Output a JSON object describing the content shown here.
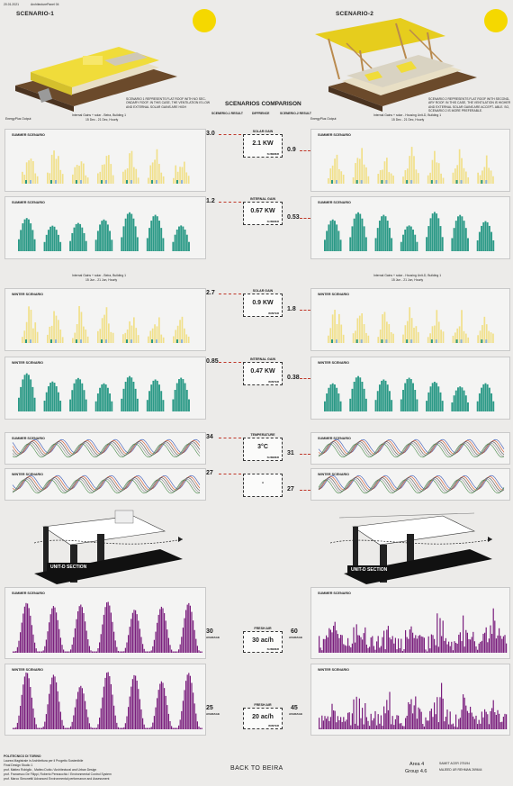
{
  "header": {
    "date": "20.01.2021",
    "studio": "ArchitecturePanel 04"
  },
  "scenario1": {
    "title": "SCENARIO-1",
    "description": "SCENARIO 1 REPRESENTS FLAT ROOF WITH NO SEC- ONDARY ROOF. IN THIS CASE, THE VENTILATION IS LOW AND EXTERNAL SOLAR GAINS ARE HIGH"
  },
  "scenario2": {
    "title": "SCENARIO-2",
    "description": "SCENARIO 2 REPRESENTS FLAT ROOF WITH SECOND- ARY ROOF. IN THIS CASE, THE VENTILATION IS HIGHER AND EXTERNAL SOLAR GAINS ARE ACCEPT- ABLE. SO, SCENARIO 2 IS MORE PREFERABLE."
  },
  "comparison": {
    "title": "SCENARIOS COMPARISON",
    "col1": "SCENERIO-1 RESULT",
    "col2": "DIFFRENCE",
    "col3": "SCENERIO-2 RESULT"
  },
  "chart_captions": {
    "summer_left": "Internal Gains + solar - Beira, Building 1",
    "summer_right": "Internal Gains + solar - Housing Unit-D, Building 1",
    "winter_left": "Internal Gains + solar - Beira, Building 1",
    "winter_right": "Internal Gains + solar - Housing Unit-D, Building 1",
    "energy_label": "EnergyPlus Output",
    "summer_dates": "15 Dec - 21 Dec, Hourly",
    "winter_dates": "15 Jun - 21 Jun, Hourly"
  },
  "rows": [
    {
      "id": "solar-summer",
      "left_label": "SUMMER SCENARIO",
      "right_label": "SUMMER SCENARIO",
      "left_value": "3.0",
      "right_value": "0.9",
      "category": "SOLAR GAIN",
      "diff": "2.1 KW",
      "season": "SUMMER",
      "type": "solar"
    },
    {
      "id": "internal-summer",
      "left_label": "SUMMER SCENARIO",
      "right_label": "SUMMER SCENARIO",
      "left_value": "1.2",
      "right_value": "0.53",
      "category": "INTERNAL GAIN",
      "diff": "0.67 KW",
      "season": "SUMMER",
      "type": "internal"
    },
    {
      "id": "solar-winter",
      "left_label": "WINTER SCENARIO",
      "right_label": "WINTER SCENARIO",
      "left_value": "2.7",
      "right_value": "1.8",
      "category": "SOLAR GAIN",
      "diff": "0.9 KW",
      "season": "WINTER",
      "type": "solar"
    },
    {
      "id": "internal-winter",
      "left_label": "WINTER SCENARIO",
      "right_label": "WINTER SCENARIO",
      "left_value": "0.85",
      "right_value": "0.38",
      "category": "INTERNAL GAIN",
      "diff": "0.47 KW",
      "season": "WINTER",
      "type": "internal"
    },
    {
      "id": "temp-summer",
      "left_label": "SUMMER SCENARIO",
      "right_label": "SUMMER SCENARIO",
      "left_value": "34",
      "right_value": "31",
      "category": "TEMPERATURE",
      "diff": "3°C",
      "season": "SUMMER",
      "type": "temp"
    },
    {
      "id": "temp-winter",
      "left_label": "WINTER SCENARIO",
      "right_label": "WINTER SCENARIO",
      "left_value": "27",
      "right_value": "27",
      "category": "",
      "diff": "-",
      "season": "",
      "type": "temp"
    }
  ],
  "section_labels": {
    "left": "UNIT-D SECTION",
    "right": "UNIT-D SECTION"
  },
  "fresh_air": [
    {
      "id": "fresh-summer",
      "left_label": "SUMMER SCENARIO",
      "right_label": "SUMMER SCENARIO",
      "left_value": "30",
      "right_value": "60",
      "avg": "AVARAGE",
      "category": "FRESH AIR",
      "diff": "30 ac/h",
      "season": "SUMMER"
    },
    {
      "id": "fresh-winter",
      "left_label": "WINTER SCENARIO",
      "right_label": "WINTER SCENARIO",
      "left_value": "25",
      "right_value": "45",
      "avg": "AVARAGE",
      "category": "FRESH AIR",
      "diff": "20 ac/h",
      "season": "WINTER"
    }
  ],
  "footer": {
    "school": "POLITECNICO DI TORINO",
    "degree": "Laurea Magistrale in Architettura per il Progetto Sostenibile",
    "studio": "Final Design Studio 1",
    "prof1": "prof. Matteo Robiglio , Matteo Dutto / Architectural and Urban Design",
    "prof2": "prof. Francesco De Filippi, Roberto Pennacchio / Environmental Control System",
    "prof3": "prof. Marco Simonetti/ Advanced Environmental performance and Assessment",
    "back": "BACK TO BEIRA",
    "area": "Area 4",
    "group": "Group 4.6",
    "student1": "SAMET ACER 275194",
    "student2": "MAJEED UR REHMAN 269644"
  },
  "colors": {
    "solar": "#f1e08a",
    "internal": "#2c9a87",
    "fresh": "#7a1e7d",
    "sun": "#f5d800",
    "accent": "#c0392b"
  }
}
